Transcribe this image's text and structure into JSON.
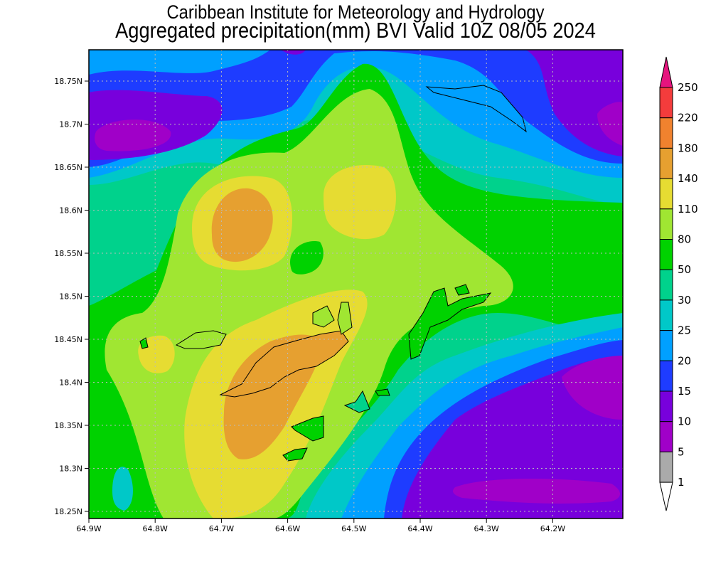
{
  "title_line1": "Caribbean Institute for Meteorology and Hydrology",
  "title_line2": "Aggregated precipitation(mm) BVI Valid 10Z 08/05 2024",
  "map": {
    "lon_labels": [
      "64.9W",
      "64.8W",
      "64.7W",
      "64.6W",
      "64.5W",
      "64.4W",
      "64.3W",
      "64.2W"
    ],
    "lat_labels": [
      "18.75N",
      "18.7N",
      "18.65N",
      "18.6N",
      "18.55N",
      "18.5N",
      "18.45N",
      "18.4N",
      "18.35N",
      "18.3N",
      "18.25N"
    ]
  },
  "colorbar": {
    "labels": [
      "250",
      "220",
      "180",
      "140",
      "110",
      "80",
      "50",
      "30",
      "25",
      "20",
      "15",
      "10",
      "5",
      "1"
    ],
    "colors": [
      "#f43c3c",
      "#f0822e",
      "#e6a030",
      "#e6dc32",
      "#a0e632",
      "#00d200",
      "#00d28c",
      "#00c8c8",
      "#00a0ff",
      "#1e3cff",
      "#7800dc",
      "#a000c8",
      "#aaaaaa"
    ],
    "top_arrow_color": "#e6147e",
    "bottom_arrow_color": "#ffffff"
  }
}
